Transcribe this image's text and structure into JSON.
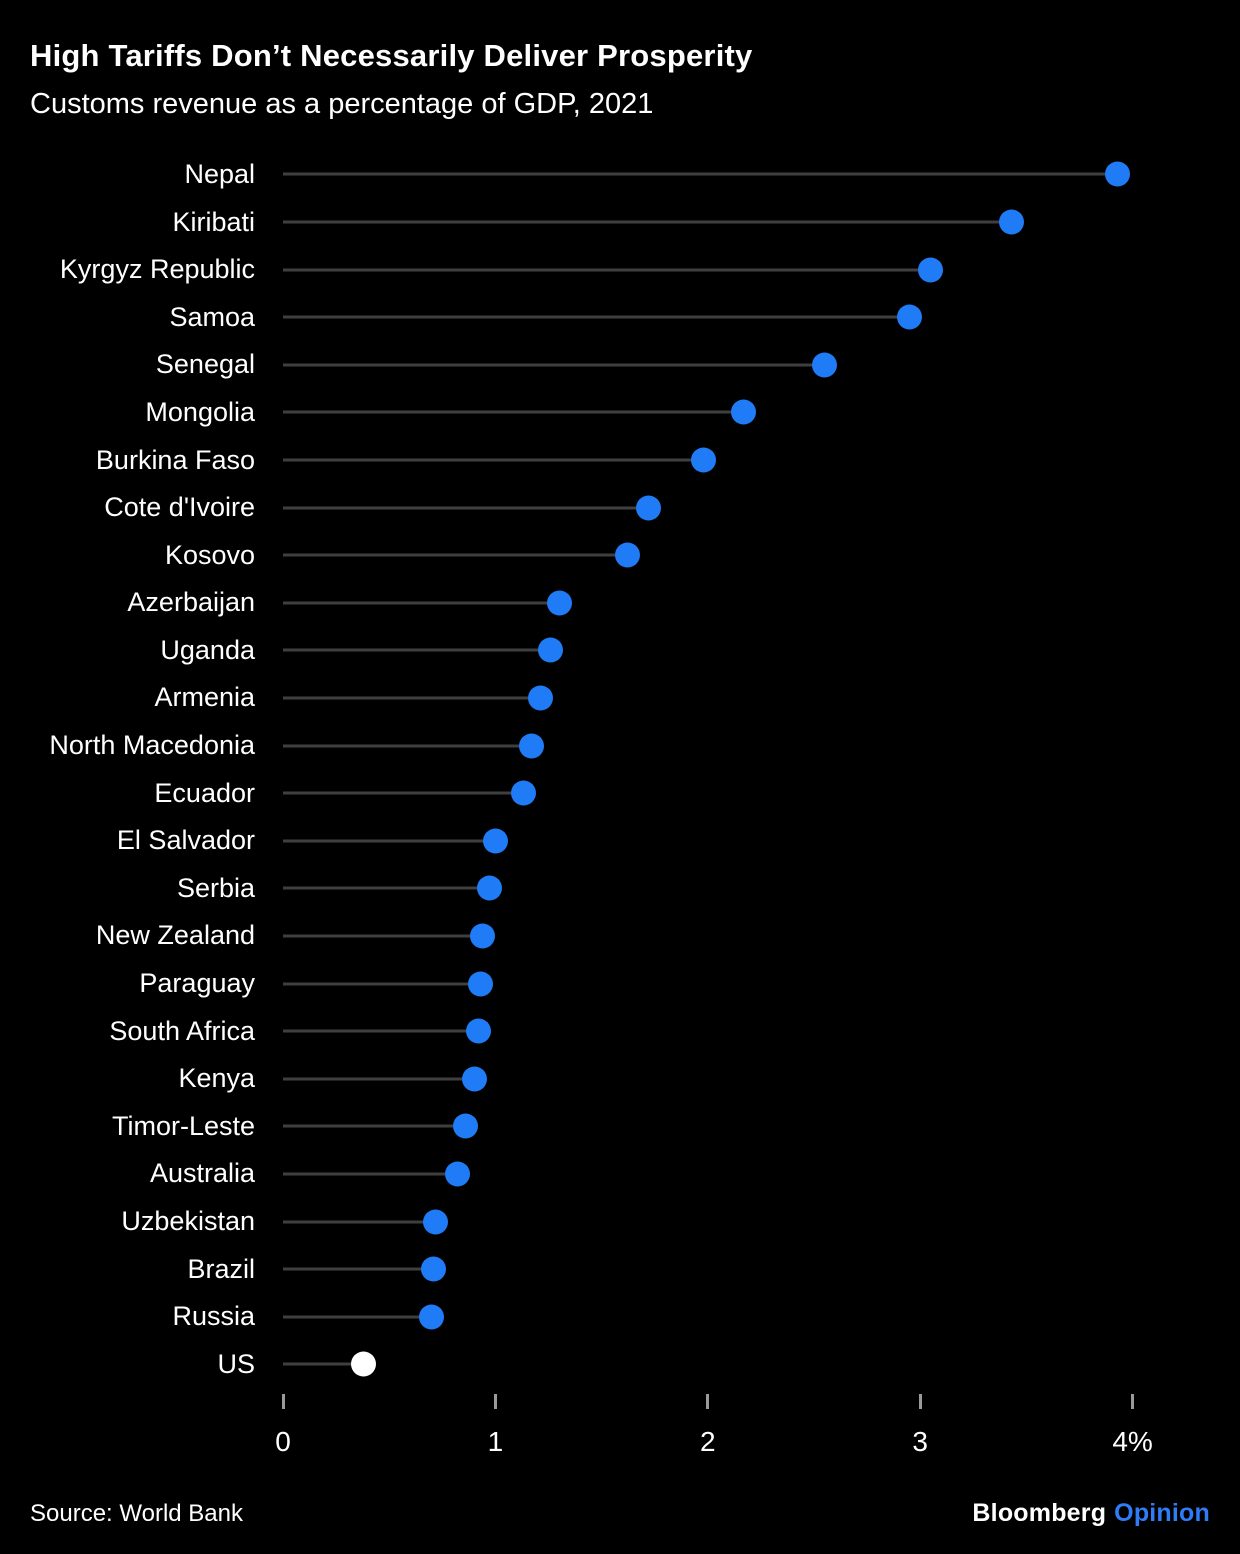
{
  "header": {
    "title": "High Tariffs Don’t Necessarily Deliver Prosperity",
    "subtitle": "Customs revenue as a percentage of GDP, 2021"
  },
  "footer": {
    "source": "Source: World Bank",
    "brand": "Bloomberg",
    "brand_suffix": "Opinion"
  },
  "colors": {
    "background": "#000000",
    "dot": "#1f7cf6",
    "dot_highlight": "#ffffff",
    "line": "#3f3f3f",
    "tick": "#9a9a9a",
    "text": "#ffffff"
  },
  "chart_data": {
    "type": "bar",
    "variant": "horizontal-lollipop-dot",
    "title": "High Tariffs Don’t Necessarily Deliver Prosperity",
    "subtitle": "Customs revenue as a percentage of GDP, 2021",
    "xlabel": "Customs revenue as a percentage of GDP",
    "ylabel": "",
    "xlim": [
      0,
      4.4
    ],
    "x_tick_values": [
      0,
      1,
      2,
      3,
      4
    ],
    "x_tick_labels": [
      "0",
      "1",
      "2",
      "3",
      "4%"
    ],
    "grid": false,
    "legend": "none",
    "highlight_category": "US",
    "categories": [
      "Nepal",
      "Kiribati",
      "Kyrgyz Republic",
      "Samoa",
      "Senegal",
      "Mongolia",
      "Burkina Faso",
      "Cote d'Ivoire",
      "Kosovo",
      "Azerbaijan",
      "Uganda",
      "Armenia",
      "North Macedonia",
      "Ecuador",
      "El Salvador",
      "Serbia",
      "New Zealand",
      "Paraguay",
      "South Africa",
      "Kenya",
      "Timor-Leste",
      "Australia",
      "Uzbekistan",
      "Brazil",
      "Russia",
      "US"
    ],
    "values": [
      3.93,
      3.43,
      3.05,
      2.95,
      2.55,
      2.17,
      1.98,
      1.72,
      1.62,
      1.3,
      1.26,
      1.21,
      1.17,
      1.13,
      1.0,
      0.97,
      0.94,
      0.93,
      0.92,
      0.9,
      0.86,
      0.82,
      0.72,
      0.71,
      0.7,
      0.38
    ]
  }
}
